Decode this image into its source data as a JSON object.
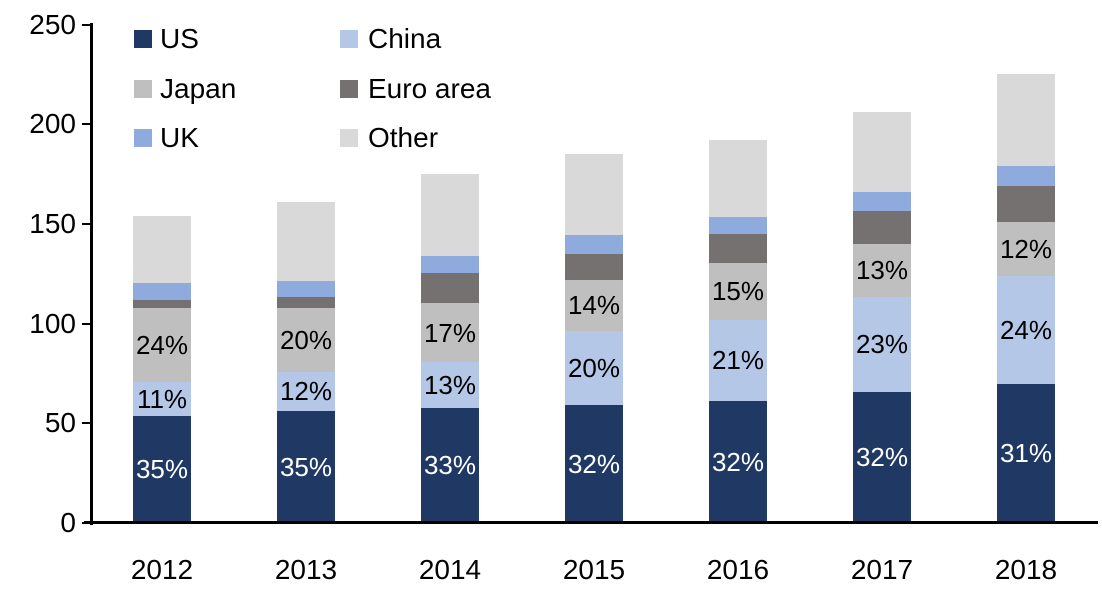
{
  "chart_data": {
    "type": "bar",
    "stacked": true,
    "title": "",
    "categories": [
      "2012",
      "2013",
      "2014",
      "2015",
      "2016",
      "2017",
      "2018"
    ],
    "totals": [
      154,
      161,
      175,
      185,
      192,
      206,
      225
    ],
    "series": [
      {
        "name": "US",
        "color": "#1F3864",
        "values": [
          53.9,
          56.4,
          57.8,
          59.2,
          61.4,
          65.9,
          69.8
        ],
        "labels": [
          "35%",
          "35%",
          "33%",
          "32%",
          "32%",
          "32%",
          "31%"
        ],
        "label_color": "#ffffff"
      },
      {
        "name": "China",
        "color": "#B4C7E7",
        "values": [
          16.9,
          19.3,
          22.8,
          37.0,
          40.3,
          47.4,
          54.0
        ],
        "labels": [
          "11%",
          "12%",
          "13%",
          "20%",
          "21%",
          "23%",
          "24%"
        ],
        "label_color": "#000000"
      },
      {
        "name": "Japan",
        "color": "#BFBFBF",
        "values": [
          37.0,
          32.2,
          29.8,
          25.9,
          28.8,
          26.8,
          27.0
        ],
        "labels": [
          "24%",
          "20%",
          "17%",
          "14%",
          "15%",
          "13%",
          "12%"
        ],
        "label_color": "#000000"
      },
      {
        "name": "Euro area",
        "color": "#767171",
        "values": [
          3.9,
          5.6,
          14.9,
          13.0,
          14.4,
          16.5,
          18.0
        ],
        "labels": null,
        "label_color": null
      },
      {
        "name": "UK",
        "color": "#8FAADC",
        "values": [
          8.5,
          8.1,
          8.7,
          9.2,
          8.6,
          9.3,
          10.1
        ],
        "labels": null,
        "label_color": null
      },
      {
        "name": "Other",
        "color": "#D9D9D9",
        "values": [
          33.8,
          39.4,
          41.1,
          40.7,
          38.4,
          40.2,
          46.1
        ],
        "labels": null,
        "label_color": null
      }
    ],
    "y_axis": {
      "min": 0,
      "max": 250,
      "tick_step": 50,
      "tick_labels": [
        "0",
        "50",
        "100",
        "150",
        "200",
        "250"
      ]
    },
    "x_axis": {
      "tick_labels": [
        "2012",
        "2013",
        "2014",
        "2015",
        "2016",
        "2017",
        "2018"
      ]
    },
    "legend": {
      "position": "top-left",
      "columns": 2,
      "entries": [
        "US",
        "China",
        "Japan",
        "Euro area",
        "UK",
        "Other"
      ]
    },
    "axis_color": "#000000",
    "background_color": "#ffffff"
  }
}
